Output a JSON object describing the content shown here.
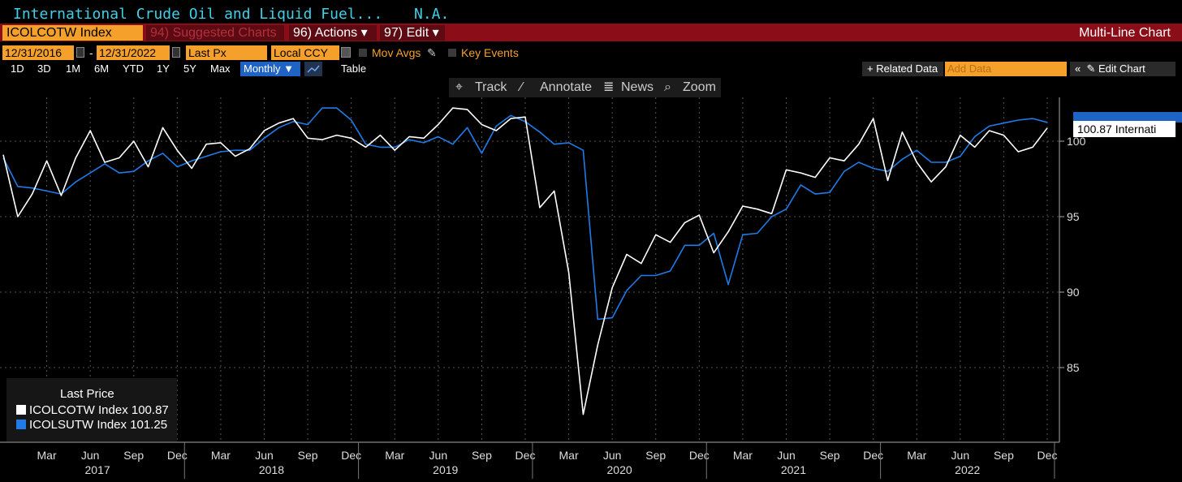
{
  "header": {
    "subtitle": "International Crude Oil and Liquid Fuel...",
    "subtitle_value": "N.A."
  },
  "menubar": {
    "ticker": "ICOLCOTW Index",
    "suggested": "94) Suggested Charts",
    "actions": "96) Actions ▾",
    "edit": "97) Edit ▾",
    "chart_type": "Multi-Line Chart"
  },
  "controls": {
    "start_date": "12/31/2016",
    "date_sep": "-",
    "end_date": "12/31/2022",
    "field": "Last Px",
    "currency": "Local CCY",
    "mov_avgs": "Mov Avgs",
    "key_events": "Key Events"
  },
  "ranges": {
    "items": [
      "1D",
      "3D",
      "1M",
      "6M",
      "YTD",
      "1Y",
      "5Y",
      "Max"
    ],
    "frequency": "Monthly ▼",
    "table": "Table",
    "related": "+ Related Data",
    "add_data_placeholder": "Add Data",
    "collapse": "«",
    "edit_chart": "✎ Edit Chart"
  },
  "toolbar": {
    "track": "Track",
    "annotate": "Annotate",
    "news": "News",
    "zoom": "Zoom"
  },
  "legend": {
    "title": "Last Price",
    "items": [
      {
        "label": "ICOLCOTW Index",
        "value": "100.87",
        "color": "#ffffff"
      },
      {
        "label": "ICOLSUTW Index",
        "value": "101.25",
        "color": "#1f7be8"
      }
    ]
  },
  "callout": {
    "text": "100.87 Internati"
  },
  "chart_data": {
    "type": "line",
    "x_start": "2016-12",
    "frequency": "monthly",
    "ylim": [
      80,
      103
    ],
    "yticks": [
      85,
      90,
      95,
      100
    ],
    "grid": true,
    "legend_position": "bottom-left",
    "x_month_labels": [
      "Mar",
      "Jun",
      "Sep",
      "Dec",
      "Mar",
      "Jun",
      "Sep",
      "Dec",
      "Mar",
      "Jun",
      "Sep",
      "Dec",
      "Mar",
      "Jun",
      "Sep",
      "Dec",
      "Mar",
      "Jun",
      "Sep",
      "Dec",
      "Mar",
      "Jun",
      "Sep",
      "Dec"
    ],
    "x_year_labels": [
      "2017",
      "2018",
      "2019",
      "2020",
      "2021",
      "2022"
    ],
    "series": [
      {
        "name": "ICOLCOTW Index",
        "color": "#ffffff",
        "values": [
          99.1,
          95.0,
          96.5,
          98.7,
          96.4,
          98.9,
          100.7,
          98.6,
          98.9,
          100.0,
          98.3,
          100.9,
          99.4,
          98.2,
          99.8,
          99.9,
          99.0,
          99.5,
          100.7,
          101.2,
          101.5,
          100.2,
          100.1,
          100.4,
          100.2,
          99.6,
          100.4,
          99.4,
          100.3,
          100.2,
          101.1,
          102.2,
          102.1,
          101.1,
          100.7,
          101.5,
          101.6,
          95.6,
          96.7,
          91.3,
          81.9,
          86.5,
          90.3,
          92.5,
          91.9,
          93.8,
          93.3,
          94.6,
          95.1,
          92.6,
          94.0,
          95.7,
          95.5,
          95.2,
          98.1,
          97.9,
          97.6,
          98.9,
          98.7,
          99.8,
          101.5,
          97.4,
          100.6,
          98.6,
          97.3,
          98.3,
          100.4,
          99.6,
          100.7,
          100.4,
          99.3,
          99.6,
          100.87
        ]
      },
      {
        "name": "ICOLSUTW Index",
        "color": "#1f7be8",
        "values": [
          98.9,
          97.0,
          96.9,
          96.7,
          96.5,
          97.3,
          97.9,
          98.5,
          97.9,
          98.0,
          98.7,
          99.2,
          98.3,
          98.7,
          99.0,
          99.3,
          99.4,
          99.4,
          100.2,
          100.9,
          101.3,
          101.1,
          102.2,
          102.2,
          101.4,
          99.8,
          99.6,
          99.6,
          100.1,
          99.9,
          100.3,
          99.8,
          100.9,
          99.2,
          101.0,
          101.7,
          101.3,
          100.6,
          99.8,
          99.9,
          99.4,
          88.2,
          88.3,
          90.1,
          91.1,
          91.1,
          91.4,
          93.1,
          93.1,
          93.9,
          90.5,
          93.8,
          93.9,
          95.0,
          95.5,
          97.1,
          96.5,
          96.6,
          98.0,
          98.6,
          98.2,
          98.0,
          98.8,
          99.4,
          98.6,
          98.6,
          99.0,
          100.3,
          101.0,
          101.2,
          101.4,
          101.5,
          101.25
        ]
      }
    ]
  }
}
